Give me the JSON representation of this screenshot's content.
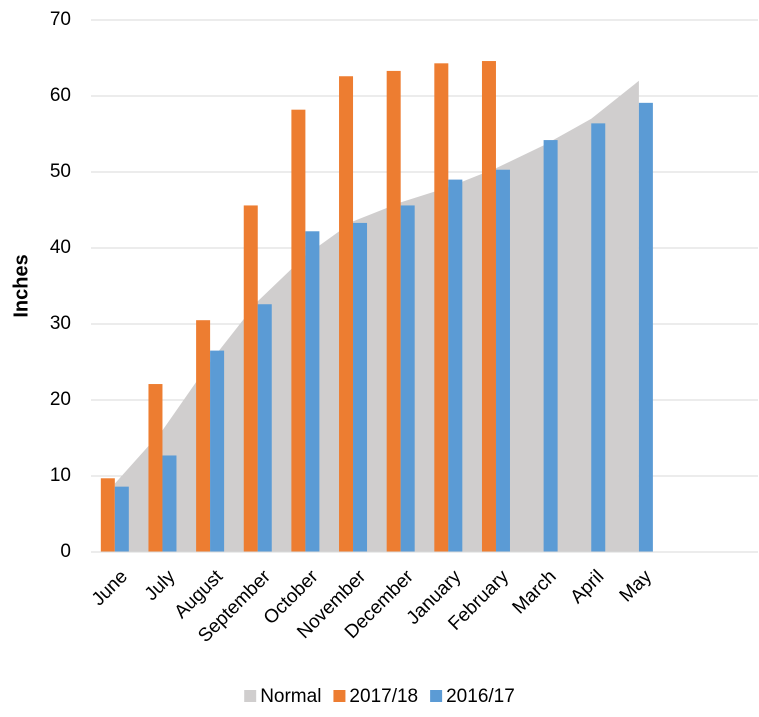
{
  "chart_data": {
    "type": "bar",
    "y_label": "Inches",
    "categories": [
      "June",
      "July",
      "August",
      "September",
      "October",
      "November",
      "December",
      "January",
      "February",
      "March",
      "April",
      "May",
      null,
      null
    ],
    "series": [
      {
        "name": "Normal",
        "type": "area",
        "color": "#d0cece",
        "values": [
          9,
          16,
          25,
          33,
          39,
          43.5,
          46,
          48,
          50.5,
          53.5,
          57,
          62,
          null,
          null
        ]
      },
      {
        "name": "2017/18",
        "type": "bar",
        "color": "#ed7d31",
        "values": [
          9.7,
          22.1,
          30.5,
          45.6,
          58.2,
          62.6,
          63.3,
          64.3,
          64.6,
          null,
          null,
          null,
          null,
          null
        ]
      },
      {
        "name": "2016/17",
        "type": "bar",
        "color": "#5b9bd5",
        "values": [
          8.6,
          12.7,
          26.5,
          32.6,
          42.2,
          43.3,
          45.6,
          49,
          50.3,
          54.2,
          56.4,
          59.1,
          null,
          null
        ]
      }
    ],
    "ylim": [
      0,
      70
    ],
    "yticks": [
      0,
      10,
      20,
      30,
      40,
      50,
      60,
      70
    ],
    "grid": true,
    "legend": "bottom"
  }
}
